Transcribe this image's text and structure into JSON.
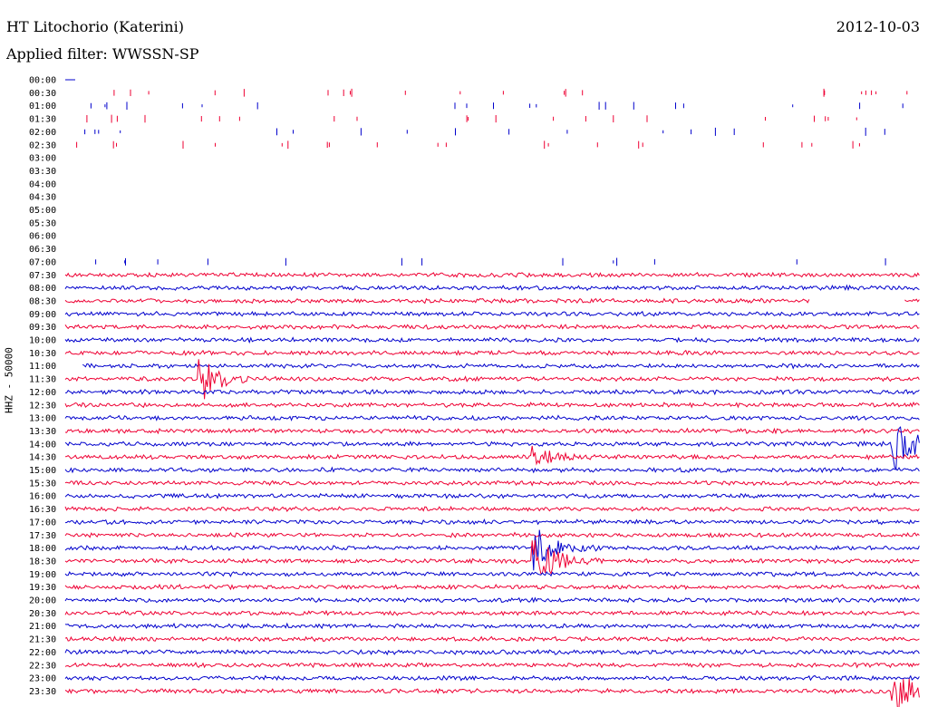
{
  "header": {
    "station": "HT Litochorio (Katerini)",
    "filter": "Applied filter: WWSSN-SP",
    "date": "2012-10-03"
  },
  "chart_data": {
    "type": "line",
    "ylabel": "HHZ - 50000",
    "row_labels": [
      "00:00",
      "00:30",
      "01:00",
      "01:30",
      "02:00",
      "02:30",
      "03:00",
      "03:30",
      "04:00",
      "04:30",
      "05:00",
      "05:30",
      "06:00",
      "06:30",
      "07:00",
      "07:30",
      "08:00",
      "08:30",
      "09:00",
      "09:30",
      "10:00",
      "10:30",
      "11:00",
      "11:30",
      "12:00",
      "12:30",
      "13:00",
      "13:30",
      "14:00",
      "14:30",
      "15:00",
      "15:30",
      "16:00",
      "16:30",
      "17:00",
      "17:30",
      "18:00",
      "18:30",
      "19:00",
      "19:30",
      "20:00",
      "20:30",
      "21:00",
      "21:30",
      "22:00",
      "22:30",
      "23:00",
      "23:30"
    ],
    "colors": [
      "#0000cc",
      "#ee0033"
    ],
    "trace_start_row": 15,
    "gaps": [
      {
        "row": 17,
        "from": 0.87,
        "to": 0.98
      },
      {
        "row": 22,
        "from": 0.0,
        "to": 0.02
      }
    ],
    "events": [
      {
        "row": 23,
        "at": 0.16,
        "strength": 0.9
      },
      {
        "row": 29,
        "at": 0.55,
        "strength": 0.35
      },
      {
        "row": 28,
        "at": 0.97,
        "strength": 1.0
      },
      {
        "row": 37,
        "at": 0.55,
        "strength": 1.0
      },
      {
        "row": 36,
        "at": 0.55,
        "strength": 0.8
      },
      {
        "row": 47,
        "at": 0.97,
        "strength": 0.9
      }
    ]
  }
}
